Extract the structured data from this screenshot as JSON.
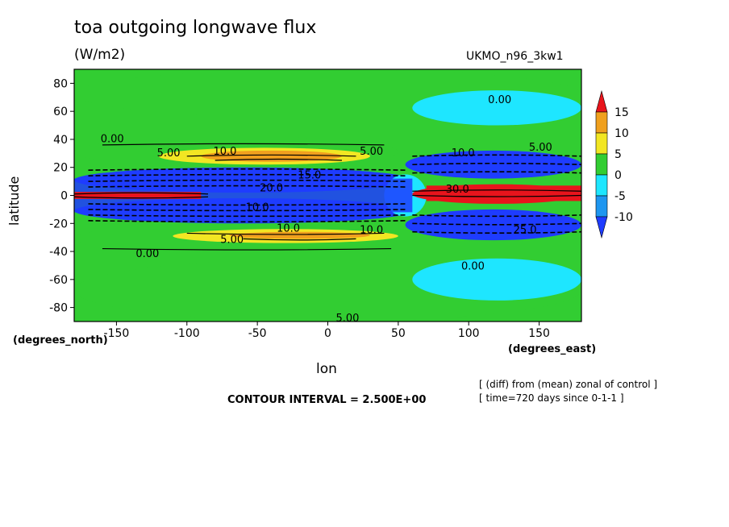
{
  "header": {
    "title": "toa outgoing longwave flux",
    "units": "(W/m2)",
    "model": "UKMO_n96_3kw1"
  },
  "footer": {
    "contour_interval": "CONTOUR INTERVAL = 2.500E+00",
    "note1": "[ (diff) from (mean) zonal of control ]",
    "note2": "[ time=720 days since 0-1-1 ]"
  },
  "chart_data": {
    "type": "heatmap",
    "title": "toa outgoing longwave flux",
    "subtitle": "(W/m2)",
    "xlabel": "lon",
    "ylabel": "latitude",
    "x_unit_label": "(degrees_east)",
    "y_unit_label": "(degrees_north)",
    "xlim": [
      -180,
      180
    ],
    "ylim": [
      -90,
      90
    ],
    "x_ticks": [
      -150,
      -100,
      -50,
      0,
      50,
      100,
      150
    ],
    "y_ticks": [
      -80,
      -60,
      -40,
      -20,
      0,
      20,
      40,
      60,
      80
    ],
    "grid": false,
    "colorbar": {
      "placement": "right",
      "labels": [
        "15",
        "10",
        "5",
        "0",
        "-5",
        "-10"
      ],
      "levels": [
        {
          "min": 15,
          "max": null,
          "color": "#e8141c"
        },
        {
          "min": 10,
          "max": 15,
          "color": "#f0a01e"
        },
        {
          "min": 5,
          "max": 10,
          "color": "#f2e623"
        },
        {
          "min": 0,
          "max": 5,
          "color": "#32cd32"
        },
        {
          "min": -5,
          "max": 0,
          "color": "#1ee6ff"
        },
        {
          "min": -10,
          "max": -5,
          "color": "#1e96f0"
        },
        {
          "min": null,
          "max": -10,
          "color": "#1e3cff"
        }
      ]
    },
    "regions": [
      {
        "lon": [
          -180,
          180
        ],
        "lat": [
          55,
          90
        ],
        "level": 3
      },
      {
        "lon": [
          -180,
          180
        ],
        "lat": [
          -90,
          -45
        ],
        "level": 3
      },
      {
        "lon": [
          60,
          180
        ],
        "lat": [
          50,
          75
        ],
        "level": 4
      },
      {
        "lon": [
          60,
          180
        ],
        "lat": [
          -75,
          -45
        ],
        "level": 4
      },
      {
        "lon": [
          -180,
          50
        ],
        "lat": [
          20,
          42
        ],
        "level": 3
      },
      {
        "lon": [
          -120,
          30
        ],
        "lat": [
          22,
          34
        ],
        "level": 2
      },
      {
        "lon": [
          -90,
          10
        ],
        "lat": [
          24,
          32
        ],
        "level": 1
      },
      {
        "lon": [
          -180,
          50
        ],
        "lat": [
          -42,
          -20
        ],
        "level": 3
      },
      {
        "lon": [
          -110,
          50
        ],
        "lat": [
          -34,
          -24
        ],
        "level": 2
      },
      {
        "lon": [
          -70,
          30
        ],
        "lat": [
          -31,
          -26
        ],
        "level": 1
      },
      {
        "lon": [
          -180,
          60
        ],
        "lat": [
          2,
          20
        ],
        "level": 6
      },
      {
        "lon": [
          -180,
          60
        ],
        "lat": [
          -20,
          -2
        ],
        "level": 6
      },
      {
        "lon": [
          -180,
          -90
        ],
        "lat": [
          -3,
          3
        ],
        "level": 0
      },
      {
        "lon": [
          55,
          180
        ],
        "lat": [
          12,
          32
        ],
        "level": 6
      },
      {
        "lon": [
          55,
          180
        ],
        "lat": [
          -32,
          -10
        ],
        "level": 6
      },
      {
        "lon": [
          40,
          70
        ],
        "lat": [
          -15,
          15
        ],
        "level": 4
      },
      {
        "lon": [
          60,
          180
        ],
        "lat": [
          -6,
          8
        ],
        "level": 0
      }
    ],
    "contour_labels": [
      {
        "text": "0.00",
        "lon": -153,
        "lat": 40
      },
      {
        "text": "5.00",
        "lon": -113,
        "lat": 30
      },
      {
        "text": "10.0",
        "lon": -73,
        "lat": 31
      },
      {
        "text": "5.00",
        "lon": 31,
        "lat": 31
      },
      {
        "text": "10.0",
        "lon": 96,
        "lat": 30
      },
      {
        "text": "5.00",
        "lon": 151,
        "lat": 34
      },
      {
        "text": "0.00",
        "lon": 122,
        "lat": 68
      },
      {
        "text": "15.0",
        "lon": -13,
        "lat": 14
      },
      {
        "text": "20.0",
        "lon": -40,
        "lat": 5
      },
      {
        "text": "30.0",
        "lon": 92,
        "lat": 4
      },
      {
        "text": "10.0",
        "lon": -50,
        "lat": -9
      },
      {
        "text": "10.0",
        "lon": -28,
        "lat": -24
      },
      {
        "text": "5.00",
        "lon": -68,
        "lat": -32
      },
      {
        "text": "10.0",
        "lon": 31,
        "lat": -25
      },
      {
        "text": "25.0",
        "lon": 140,
        "lat": -25
      },
      {
        "text": "0.00",
        "lon": -128,
        "lat": -42
      },
      {
        "text": "0.00",
        "lon": 103,
        "lat": -51
      },
      {
        "text": "5.00",
        "lon": 14,
        "lat": -88
      }
    ]
  }
}
